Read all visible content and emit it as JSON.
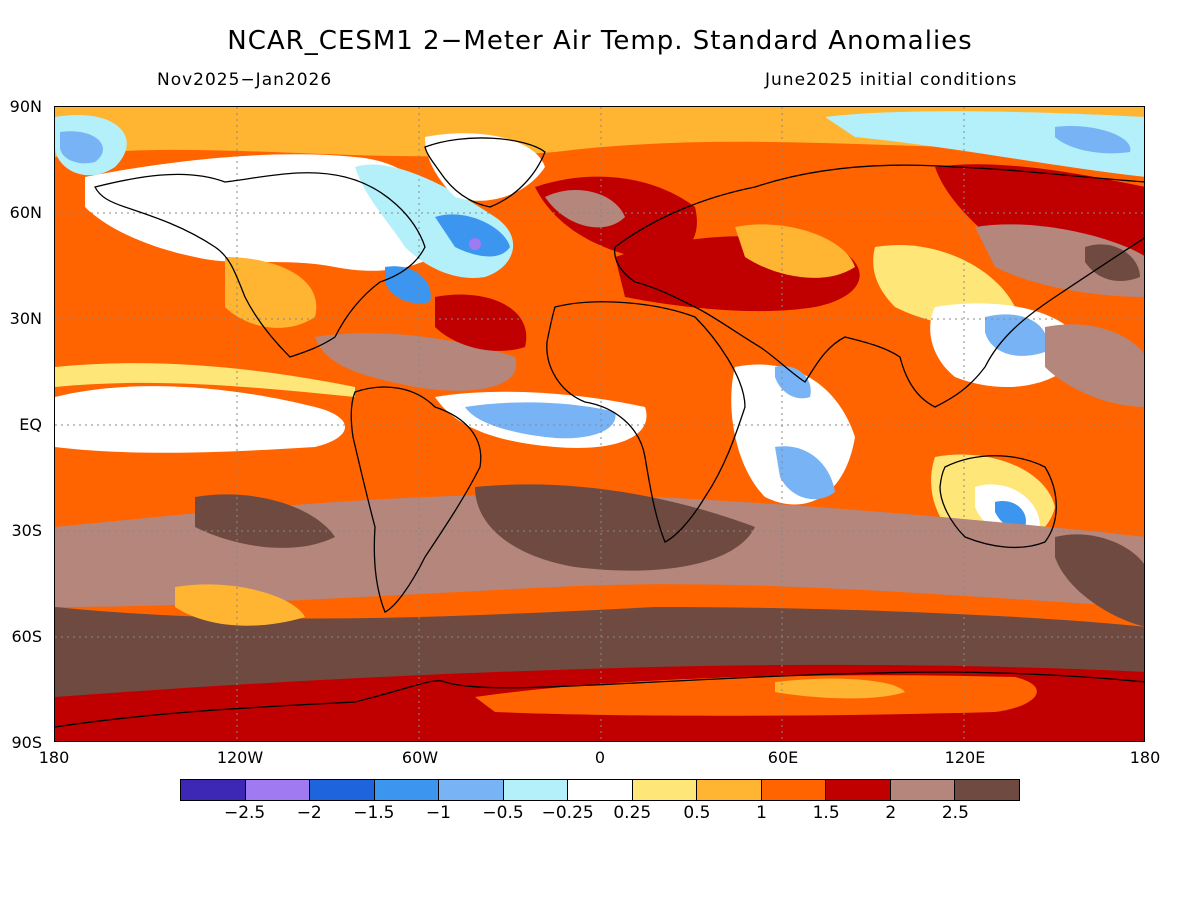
{
  "title": "NCAR_CESM1 2−Meter Air Temp. Standard Anomalies",
  "subtitle_left": "Nov2025−Jan2026",
  "subtitle_right": "June2025 initial conditions",
  "lat_labels": [
    "90N",
    "60N",
    "30N",
    "EQ",
    "30S",
    "60S",
    "90S"
  ],
  "lon_labels": [
    "180",
    "120W",
    "60W",
    "0",
    "60E",
    "120E",
    "180"
  ],
  "colorbar": {
    "colors": [
      "#3c28b4",
      "#a07af0",
      "#1e64dc",
      "#3c96f0",
      "#78b4f5",
      "#b4f0fa",
      "#ffffff",
      "#ffe678",
      "#ffb432",
      "#ff6400",
      "#c00000",
      "#b4867c",
      "#6e4a40"
    ],
    "labels": [
      "−2.5",
      "−2",
      "−1.5",
      "−1",
      "−0.5",
      "−0.25",
      "0.25",
      "0.5",
      "1",
      "1.5",
      "2",
      "2.5"
    ]
  }
}
